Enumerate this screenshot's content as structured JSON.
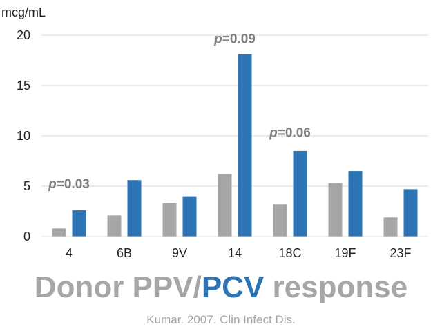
{
  "colors": {
    "ppv": "#a6a6a6",
    "pcv": "#2e75b6",
    "pvalue": "#7f7f7f",
    "grid": "#d9d9d9"
  },
  "chart_data": {
    "type": "bar",
    "categories": [
      "4",
      "6B",
      "9V",
      "14",
      "18C",
      "19F",
      "23F"
    ],
    "series": [
      {
        "values": [
          0.8,
          2.1,
          3.3,
          6.2,
          3.2,
          5.3,
          1.9
        ]
      },
      {
        "values": [
          2.6,
          5.6,
          4.0,
          18.1,
          8.5,
          6.5,
          4.7
        ]
      }
    ],
    "ylabel": "mcg/mL",
    "ylim": [
      0,
      20
    ],
    "yticks": [
      0,
      5,
      10,
      15,
      20
    ],
    "grid": true,
    "annotations": [
      {
        "category": "4",
        "prefix": "p",
        "text": "=0.03",
        "y": 4.8
      },
      {
        "category": "14",
        "prefix": "p",
        "text": "=0.09",
        "y": 19.2
      },
      {
        "category": "18C",
        "prefix": "p",
        "text": "=0.06",
        "y": 9.9
      }
    ]
  },
  "footer": {
    "title_part1": "Donor PPV/",
    "title_part2": "PCV",
    "title_part3": " response",
    "source": "Kumar. 2007. Clin Infect Dis."
  }
}
